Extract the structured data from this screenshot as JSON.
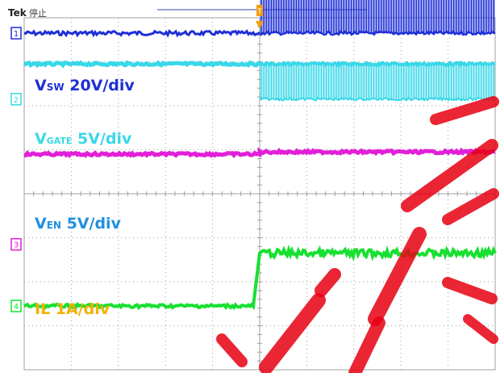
{
  "header": {
    "brand": "Tek",
    "status": "停止",
    "trigger_marker": "T"
  },
  "colors": {
    "background": "#ffffff",
    "graticule": "#a0a0a0",
    "vsw": "#1e2fd6",
    "vgate": "#38d8e8",
    "ven": "#e21fd8",
    "il": "#18e030",
    "il_label": "#f2b000",
    "trigger": "#f39c12",
    "watermark": "#e60012"
  },
  "chart_data": {
    "type": "line",
    "title": "",
    "grid": true,
    "divisions": {
      "x": 10,
      "y": 8
    },
    "series": [
      {
        "name": "VSW 20V/div",
        "label_main": "V",
        "label_sub": "SW",
        "label_rest": " 20V/div",
        "channel": "1",
        "low_div": 3.65,
        "high_div": 6.7
      },
      {
        "name": "VGATE 5V/div",
        "label_main": "V",
        "label_sub": "GATE",
        "label_rest": " 5V/div",
        "channel": "2",
        "low_div": 2.15,
        "high_div": 2.95
      },
      {
        "name": "VEN 5V/div",
        "label_main": "V",
        "label_sub": "EN",
        "label_rest": " 5V/div",
        "channel": "3",
        "low_div": 0.9,
        "high_div": 0.95
      },
      {
        "name": "IL 1A/div",
        "label_main": "IL 1A/div",
        "label_sub": "",
        "label_rest": "",
        "channel": "4",
        "low_div": -2.55,
        "high_div": -1.35
      }
    ],
    "trigger_div_x": 0.0
  }
}
